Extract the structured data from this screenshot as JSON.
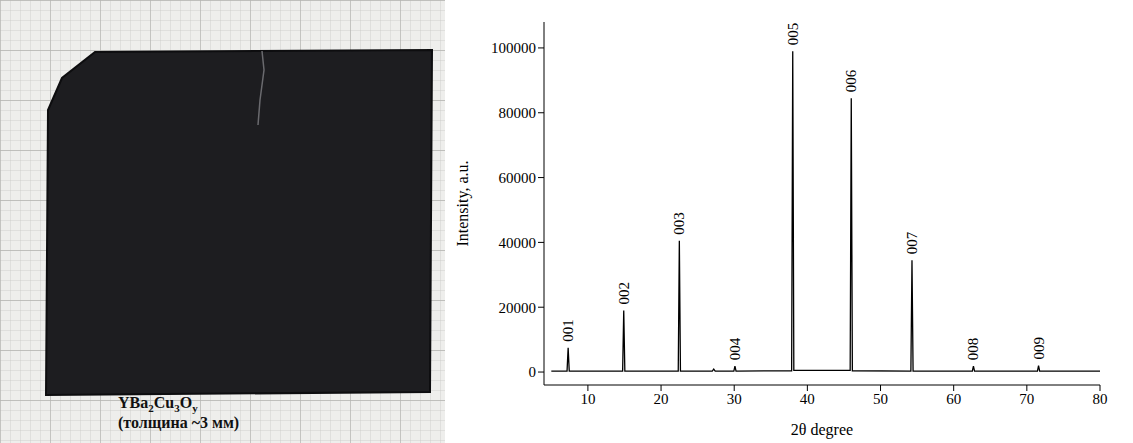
{
  "chart_data": {
    "type": "line",
    "x_label": "2θ degree",
    "y_label": "Intensity, a.u.",
    "color": "#000000",
    "grid": false,
    "xlim": [
      4,
      80
    ],
    "xticks": [
      10,
      20,
      30,
      40,
      50,
      60,
      70,
      80
    ],
    "ylim": [
      -4000,
      108000
    ],
    "yticks": [
      0,
      20000,
      40000,
      60000,
      80000,
      100000
    ],
    "x": [
      5,
      7.15,
      7.3,
      7.45,
      14.75,
      14.9,
      15.05,
      22.35,
      22.5,
      22.65,
      27.0,
      27.2,
      27.4,
      29.95,
      30.1,
      30.25,
      37.85,
      38.0,
      38.15,
      45.85,
      46.0,
      46.15,
      54.15,
      54.3,
      54.45,
      62.55,
      62.7,
      62.85,
      71.45,
      71.6,
      71.75,
      80
    ],
    "values": [
      300,
      300,
      7500,
      300,
      300,
      19000,
      300,
      300,
      40500,
      300,
      300,
      900,
      300,
      300,
      1800,
      300,
      400,
      99000,
      500,
      500,
      84500,
      400,
      300,
      34500,
      300,
      300,
      1800,
      300,
      300,
      2000,
      300,
      300
    ],
    "annotations": [
      {
        "x": 7.3,
        "y": 7500,
        "text": "001"
      },
      {
        "x": 14.9,
        "y": 19000,
        "text": "002"
      },
      {
        "x": 22.5,
        "y": 40500,
        "text": "003"
      },
      {
        "x": 30.1,
        "y": 1800,
        "text": "004"
      },
      {
        "x": 38.0,
        "y": 99000,
        "text": "005"
      },
      {
        "x": 46.0,
        "y": 84500,
        "text": "006"
      },
      {
        "x": 54.3,
        "y": 34500,
        "text": "007"
      },
      {
        "x": 62.7,
        "y": 1800,
        "text": "008"
      },
      {
        "x": 71.6,
        "y": 2000,
        "text": "009"
      }
    ]
  },
  "photo": {
    "caption_line1": [
      {
        "text": "YBa"
      },
      {
        "sub": "2"
      },
      {
        "text": "Cu"
      },
      {
        "sub": "3"
      },
      {
        "text": "O"
      },
      {
        "sub": "y"
      }
    ],
    "caption_line2": "(толщина ~3 мм)"
  }
}
